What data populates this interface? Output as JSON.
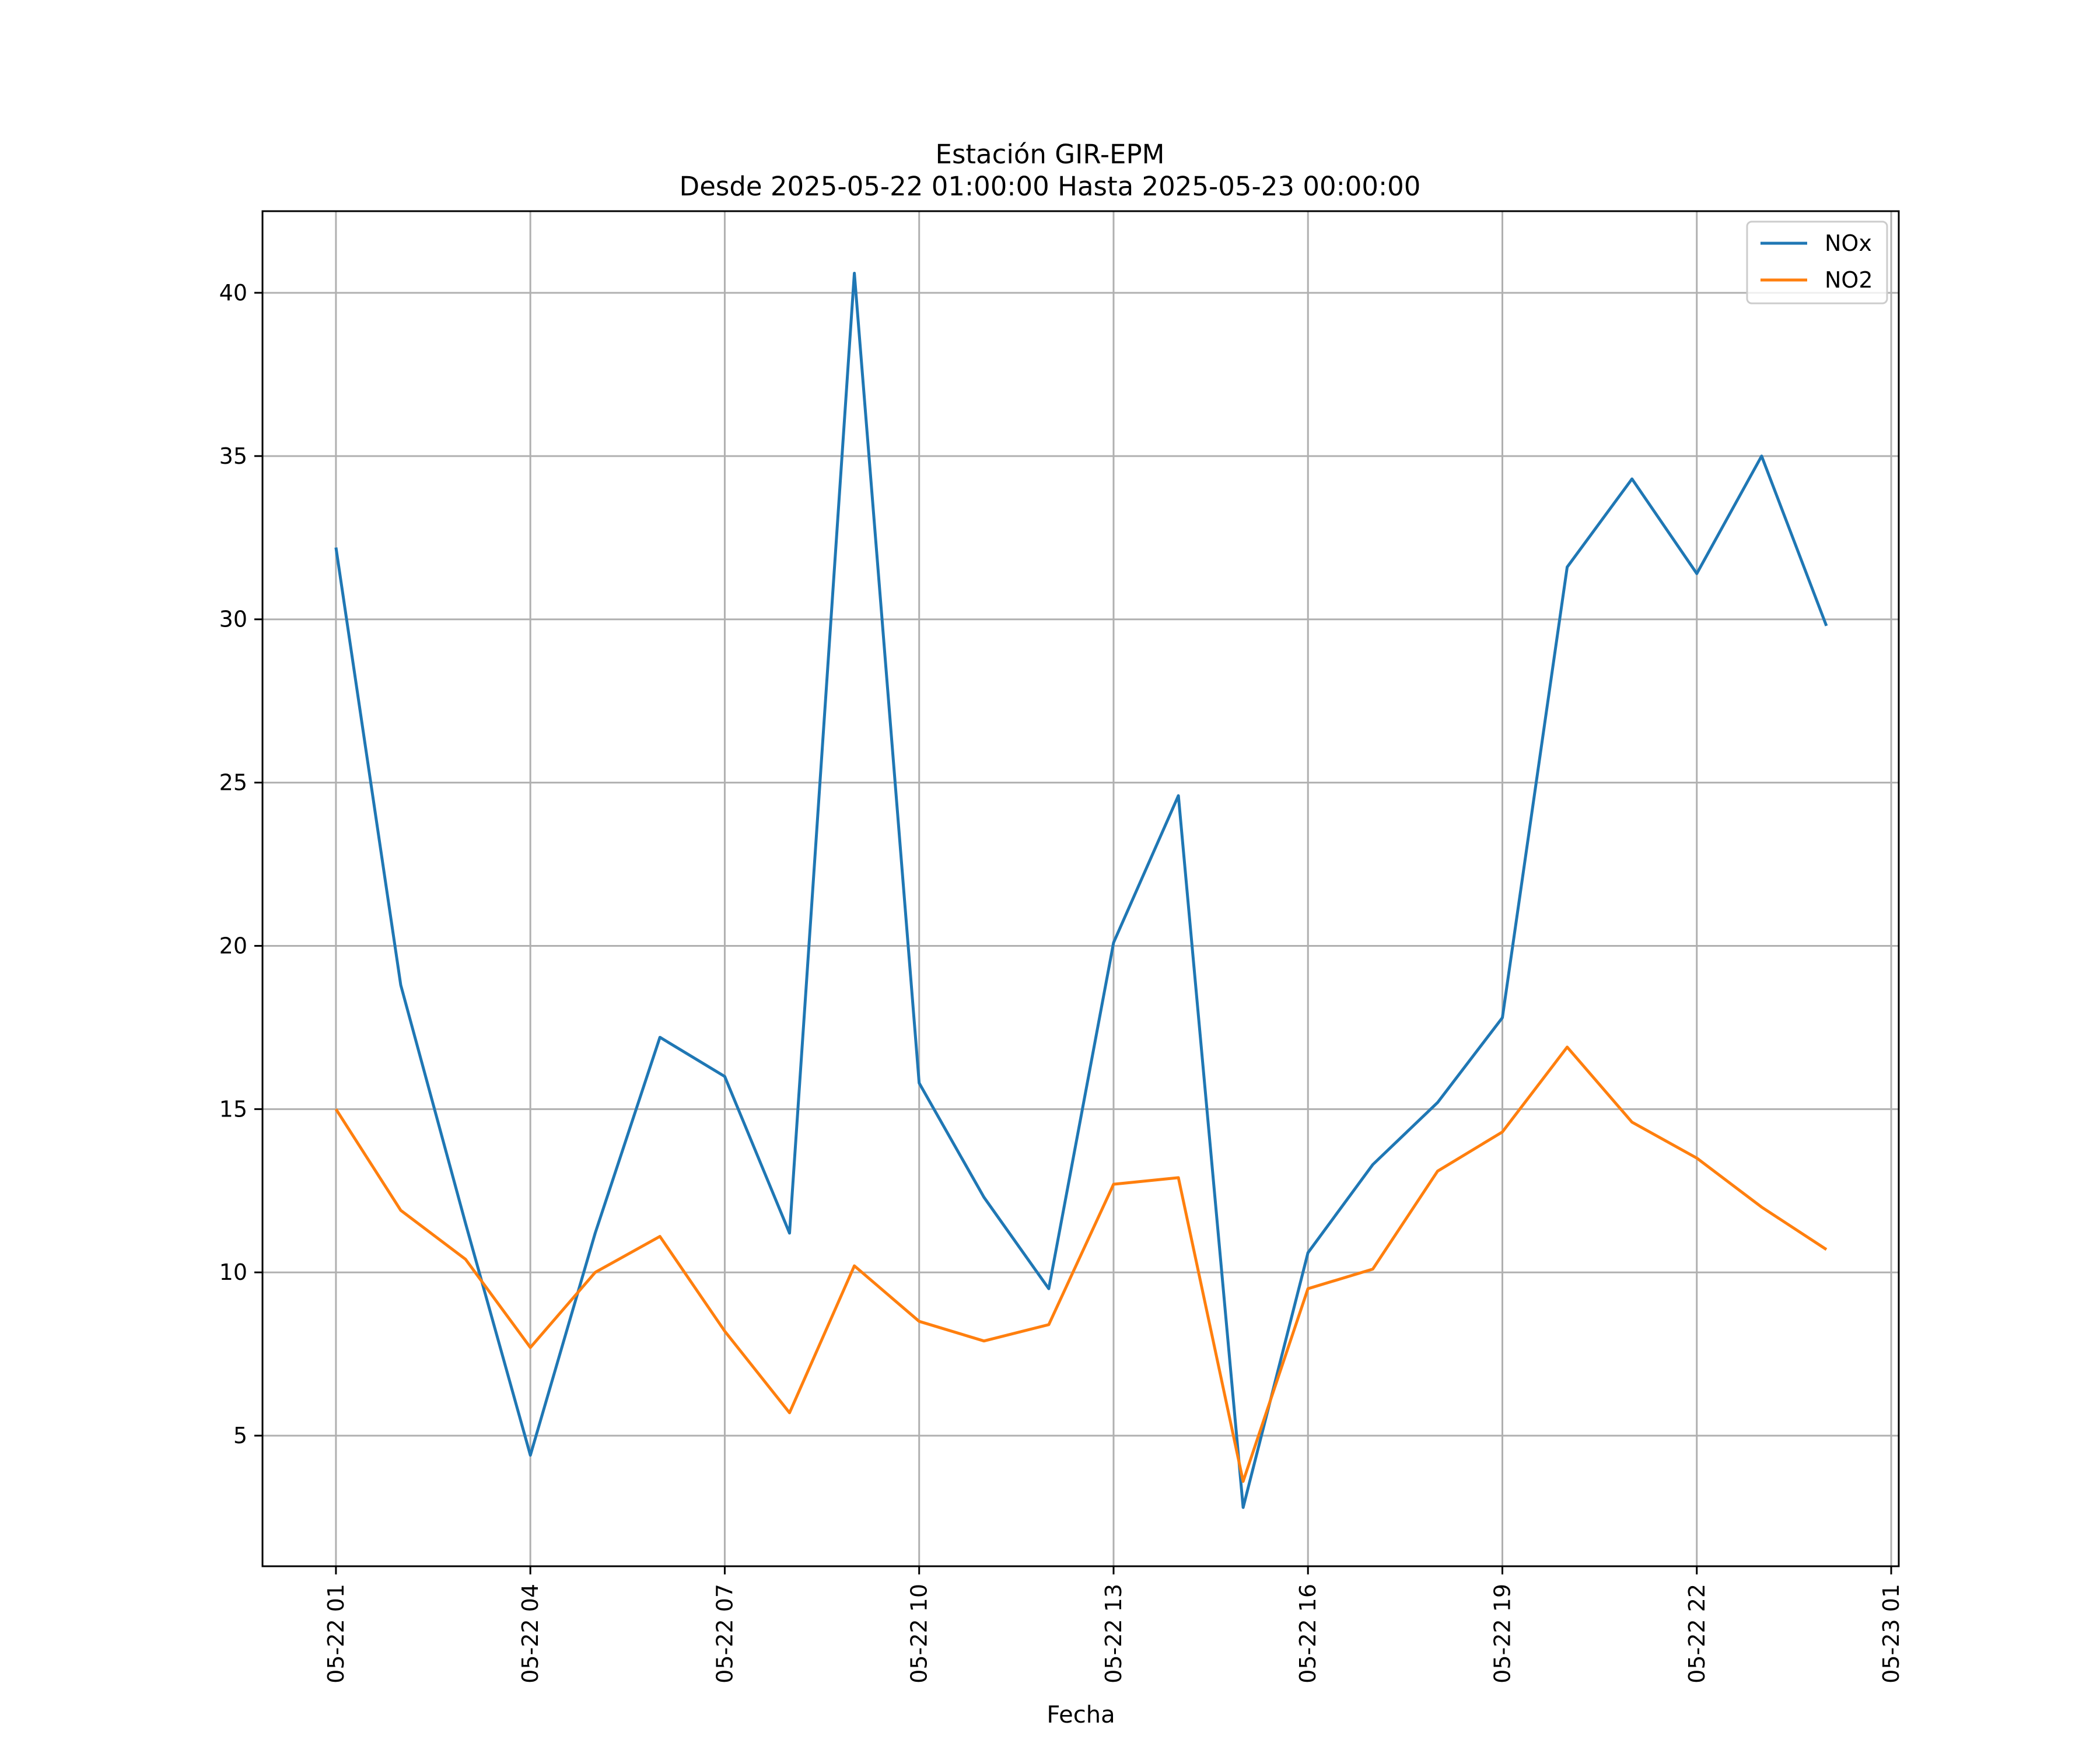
{
  "chart_data": {
    "type": "line",
    "title": [
      "Estación GIR-EPM",
      "Desde 2025-05-22 01:00:00 Hasta 2025-05-23 00:00:00"
    ],
    "xlabel": "Fecha",
    "ylabel": "",
    "x": [
      "2025-05-22 01:00",
      "2025-05-22 02:00",
      "2025-05-22 03:00",
      "2025-05-22 04:00",
      "2025-05-22 05:00",
      "2025-05-22 06:00",
      "2025-05-22 07:00",
      "2025-05-22 08:00",
      "2025-05-22 09:00",
      "2025-05-22 10:00",
      "2025-05-22 11:00",
      "2025-05-22 12:00",
      "2025-05-22 13:00",
      "2025-05-22 14:00",
      "2025-05-22 15:00",
      "2025-05-22 16:00",
      "2025-05-22 17:00",
      "2025-05-22 18:00",
      "2025-05-22 19:00",
      "2025-05-22 20:00",
      "2025-05-22 21:00",
      "2025-05-22 22:00",
      "2025-05-22 23:00",
      "2025-05-23 00:00"
    ],
    "series": [
      {
        "name": "NOx",
        "color": "#1f77b4",
        "values": [
          32.2,
          18.8,
          11.5,
          4.4,
          11.2,
          17.2,
          16.0,
          11.2,
          40.6,
          15.8,
          12.3,
          9.5,
          20.1,
          24.6,
          2.8,
          10.6,
          13.3,
          15.2,
          17.8,
          31.6,
          34.3,
          31.4,
          35.0,
          29.8
        ]
      },
      {
        "name": "NO2",
        "color": "#ff7f0e",
        "values": [
          15.0,
          11.9,
          10.4,
          7.7,
          10.0,
          11.1,
          8.2,
          5.7,
          10.2,
          8.5,
          7.9,
          8.4,
          12.7,
          12.9,
          3.6,
          9.5,
          10.1,
          13.1,
          14.3,
          16.9,
          14.6,
          13.5,
          12.0,
          10.7
        ]
      }
    ],
    "xticks": [
      "2025-05-22 01:00",
      "2025-05-22 04:00",
      "2025-05-22 07:00",
      "2025-05-22 10:00",
      "2025-05-22 13:00",
      "2025-05-22 16:00",
      "2025-05-22 19:00",
      "2025-05-22 22:00",
      "2025-05-23 01:00"
    ],
    "xtick_labels": [
      "05-22 01",
      "05-22 04",
      "05-22 07",
      "05-22 10",
      "05-22 13",
      "05-22 16",
      "05-22 19",
      "05-22 22",
      "05-23 01"
    ],
    "xlim": [
      "2025-05-21 23:52",
      "2025-05-23 01:07"
    ],
    "yticks": [
      5,
      10,
      15,
      20,
      25,
      30,
      35,
      40
    ],
    "ylim": [
      1.0,
      42.5
    ],
    "grid": true,
    "legend": "upper-right"
  }
}
